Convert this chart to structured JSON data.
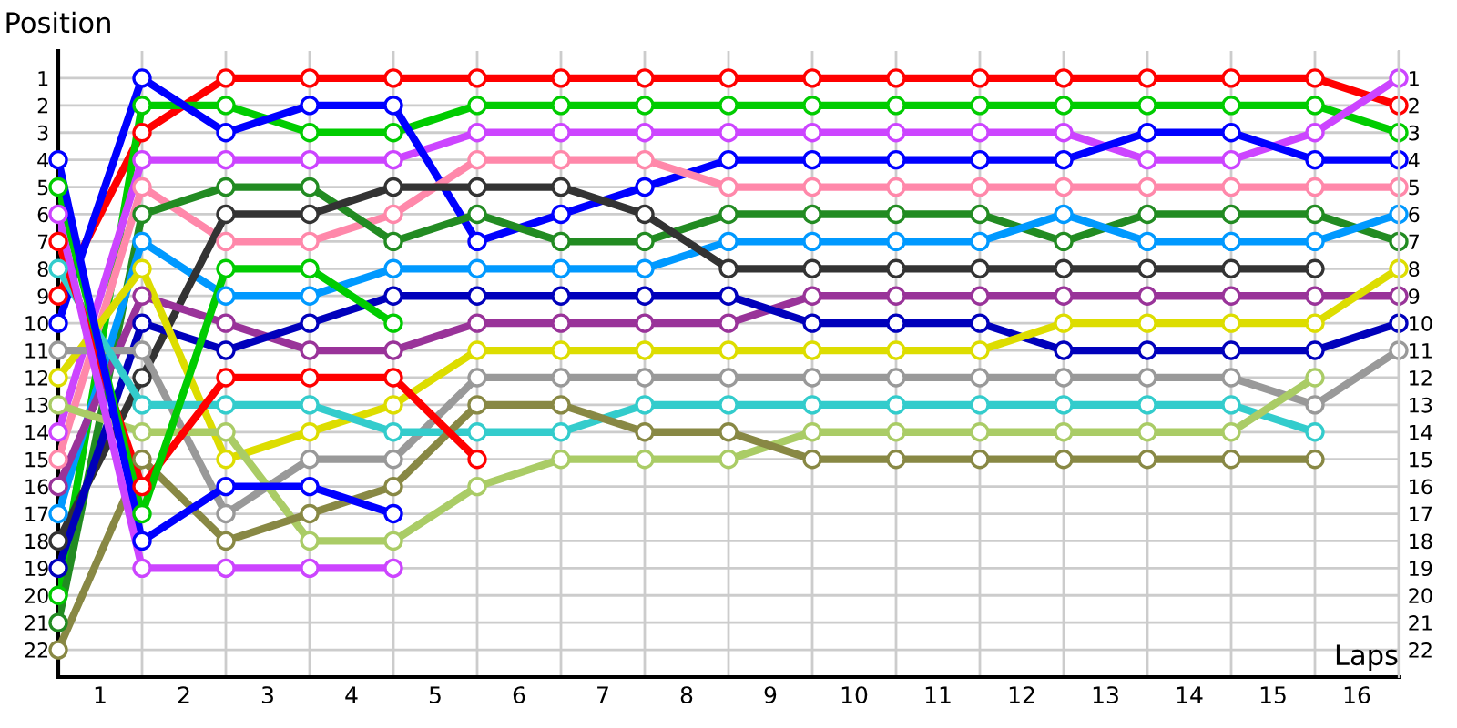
{
  "chart_data": {
    "type": "line",
    "xlabel": "Laps",
    "ylabel": "Position",
    "x": [
      0,
      1,
      2,
      3,
      4,
      5,
      6,
      7,
      8,
      9,
      10,
      11,
      12,
      13,
      14,
      15,
      16
    ],
    "xlim": [
      0,
      16
    ],
    "xticks": [
      {
        "value": 0.5,
        "label": "1"
      },
      {
        "value": 1.5,
        "label": "2"
      },
      {
        "value": 2.5,
        "label": "3"
      },
      {
        "value": 3.5,
        "label": "4"
      },
      {
        "value": 4.5,
        "label": "5"
      },
      {
        "value": 5.5,
        "label": "6"
      },
      {
        "value": 6.5,
        "label": "7"
      },
      {
        "value": 7.5,
        "label": "8"
      },
      {
        "value": 8.5,
        "label": "9"
      },
      {
        "value": 9.5,
        "label": "10"
      },
      {
        "value": 10.5,
        "label": "11"
      },
      {
        "value": 11.5,
        "label": "12"
      },
      {
        "value": 12.5,
        "label": "13"
      },
      {
        "value": 13.5,
        "label": "14"
      },
      {
        "value": 14.5,
        "label": "15"
      },
      {
        "value": 15.5,
        "label": "16"
      },
      {
        "value": 1,
        "label": null
      },
      {
        "value": 2,
        "label": null
      },
      {
        "value": 3,
        "label": null
      },
      {
        "value": 4,
        "label": null
      },
      {
        "value": 5,
        "label": null
      },
      {
        "value": 6,
        "label": null
      },
      {
        "value": 7,
        "label": null
      },
      {
        "value": 8,
        "label": null
      },
      {
        "value": 9,
        "label": null
      },
      {
        "value": 10,
        "label": null
      },
      {
        "value": 11,
        "label": null
      },
      {
        "value": 12,
        "label": null
      },
      {
        "value": 13,
        "label": null
      },
      {
        "value": 14,
        "label": null
      },
      {
        "value": 15,
        "label": null
      },
      {
        "value": 16,
        "label": null
      }
    ],
    "ylim": [
      23,
      0
    ],
    "yticks": [
      1,
      2,
      3,
      4,
      5,
      6,
      7,
      8,
      9,
      10,
      11,
      12,
      13,
      14,
      15,
      16,
      17,
      18,
      19,
      20,
      21,
      22
    ],
    "y2lim": [
      23,
      0
    ],
    "y2ticks": [
      1,
      2,
      3,
      4,
      5,
      6,
      7,
      8,
      9,
      10,
      11,
      12,
      13,
      14,
      15,
      16,
      17,
      18,
      19,
      20,
      21,
      22
    ],
    "grid": true,
    "marker": "circle",
    "line_style": "solid",
    "legend": false,
    "series": [
      {
        "color": "#ff0000",
        "values": [
          9,
          3,
          1,
          1,
          1,
          1,
          1,
          1,
          1,
          1,
          1,
          1,
          1,
          1,
          1,
          1,
          2
        ]
      },
      {
        "color": "#00cc00",
        "values": [
          20,
          2,
          2,
          3,
          3,
          2,
          2,
          2,
          2,
          2,
          2,
          2,
          2,
          2,
          2,
          2,
          3
        ]
      },
      {
        "color": "#cc44ff",
        "values": [
          14,
          4,
          4,
          4,
          4,
          3,
          3,
          3,
          3,
          3,
          3,
          3,
          3,
          4,
          4,
          3,
          1
        ]
      },
      {
        "color": "#0000ff",
        "values": [
          10,
          1,
          3,
          2,
          2,
          7,
          6,
          5,
          4,
          4,
          4,
          4,
          4,
          3,
          3,
          4,
          4
        ]
      },
      {
        "color": "#ff88aa",
        "values": [
          15,
          5,
          7,
          7,
          6,
          4,
          4,
          4,
          5,
          5,
          5,
          5,
          5,
          5,
          5,
          5,
          5
        ]
      },
      {
        "color": "#228b22",
        "values": [
          21,
          6,
          5,
          5,
          7,
          6,
          7,
          7,
          6,
          6,
          6,
          6,
          7,
          6,
          6,
          6,
          7
        ]
      },
      {
        "color": "#0099ff",
        "values": [
          17,
          7,
          9,
          9,
          8,
          8,
          8,
          8,
          7,
          7,
          7,
          7,
          6,
          7,
          7,
          7,
          6
        ]
      },
      {
        "color": "#333333",
        "values": [
          18,
          12,
          6,
          6,
          5,
          5,
          5,
          6,
          8,
          8,
          8,
          8,
          8,
          8,
          8,
          8,
          null
        ]
      },
      {
        "color": "#993399",
        "values": [
          16,
          9,
          10,
          11,
          11,
          10,
          10,
          10,
          10,
          9,
          9,
          9,
          9,
          9,
          9,
          9,
          9
        ]
      },
      {
        "color": "#0000bb",
        "values": [
          19,
          10,
          11,
          10,
          9,
          9,
          9,
          9,
          9,
          10,
          10,
          10,
          11,
          11,
          11,
          11,
          10
        ]
      },
      {
        "color": "#dddd00",
        "values": [
          12,
          8,
          15,
          14,
          13,
          11,
          11,
          11,
          11,
          11,
          11,
          11,
          10,
          10,
          10,
          10,
          8
        ]
      },
      {
        "color": "#999999",
        "values": [
          11,
          11,
          17,
          15,
          15,
          12,
          12,
          12,
          12,
          12,
          12,
          12,
          12,
          12,
          12,
          13,
          11
        ]
      },
      {
        "color": "#33cccc",
        "values": [
          8,
          13,
          13,
          13,
          14,
          14,
          14,
          13,
          13,
          13,
          13,
          13,
          13,
          13,
          13,
          14,
          null
        ]
      },
      {
        "color": "#aacc66",
        "values": [
          13,
          14,
          14,
          18,
          18,
          16,
          15,
          15,
          15,
          14,
          14,
          14,
          14,
          14,
          14,
          12,
          null
        ]
      },
      {
        "color": "#888844",
        "values": [
          22,
          15,
          18,
          17,
          16,
          13,
          13,
          14,
          14,
          15,
          15,
          15,
          15,
          15,
          15,
          15,
          null
        ]
      },
      {
        "color": "#ff0000",
        "values": [
          7,
          16,
          12,
          12,
          12,
          15,
          null,
          null,
          null,
          null,
          null,
          null,
          null,
          null,
          null,
          null,
          null
        ]
      },
      {
        "color": "#00cc00",
        "values": [
          5,
          17,
          8,
          8,
          10,
          null,
          null,
          null,
          null,
          null,
          null,
          null,
          null,
          null,
          null,
          null,
          null
        ]
      },
      {
        "color": "#0000ff",
        "values": [
          4,
          18,
          16,
          16,
          17,
          null,
          null,
          null,
          null,
          null,
          null,
          null,
          null,
          null,
          null,
          null,
          null
        ]
      },
      {
        "color": "#cc44ff",
        "values": [
          6,
          19,
          19,
          19,
          19,
          null,
          null,
          null,
          null,
          null,
          null,
          null,
          null,
          null,
          null,
          null,
          null
        ]
      }
    ]
  }
}
